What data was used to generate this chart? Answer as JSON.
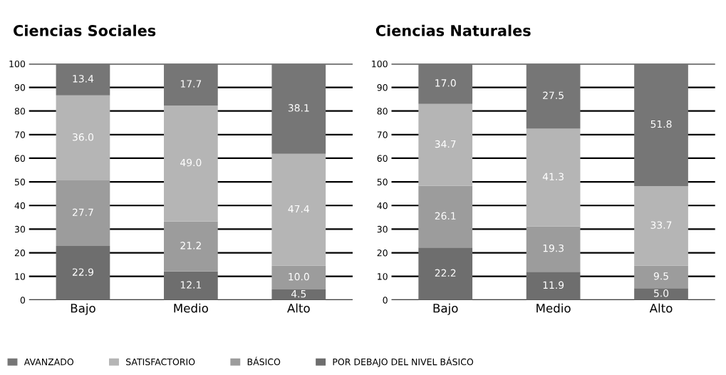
{
  "chart_data": [
    {
      "type": "bar",
      "title": "Ciencias Sociales",
      "categories": [
        "Bajo",
        "Medio",
        "Alto"
      ],
      "stacked": true,
      "grid": "y",
      "legend": "bottom",
      "ylim": [
        0,
        100
      ],
      "yticks": [
        0,
        10,
        20,
        30,
        40,
        50,
        60,
        70,
        80,
        90,
        100
      ],
      "series": [
        {
          "name": "POR DEBAJO DEL NIVEL BÁSICO",
          "color": "#6e6e6e",
          "values": [
            22.9,
            12.1,
            4.5
          ],
          "value_labels": [
            "22.9",
            "12.1",
            "4.5"
          ]
        },
        {
          "name": "BÁSICO",
          "color": "#9c9c9c",
          "values": [
            27.7,
            21.2,
            10.0
          ],
          "value_labels": [
            "27.7",
            "21.2",
            "10.0"
          ]
        },
        {
          "name": "SATISFACTORIO",
          "color": "#b5b5b5",
          "values": [
            36.0,
            49.0,
            47.4
          ],
          "value_labels": [
            "36.0",
            "49.0",
            "47.4"
          ]
        },
        {
          "name": "AVANZADO",
          "color": "#767676",
          "values": [
            13.4,
            17.7,
            38.1
          ],
          "value_labels": [
            "13.4",
            "17.7",
            "38.1"
          ]
        }
      ]
    },
    {
      "type": "bar",
      "title": "Ciencias Naturales",
      "categories": [
        "Bajo",
        "Medio",
        "Alto"
      ],
      "stacked": true,
      "grid": "y",
      "ylim": [
        0,
        100
      ],
      "yticks": [
        0,
        10,
        20,
        30,
        40,
        50,
        60,
        70,
        80,
        90,
        100
      ],
      "series": [
        {
          "color": "#6e6e6e",
          "values": [
            22.2,
            11.9,
            5.0
          ],
          "value_labels": [
            "22.2",
            "11.9",
            "5.0"
          ]
        },
        {
          "color": "#9c9c9c",
          "values": [
            26.1,
            19.3,
            9.5
          ],
          "value_labels": [
            "26.1",
            "19.3",
            "9.5"
          ]
        },
        {
          "color": "#b5b5b5",
          "values": [
            34.7,
            41.3,
            33.7
          ],
          "value_labels": [
            "34.7",
            "41.3",
            "33.7"
          ]
        },
        {
          "color": "#767676",
          "values": [
            17.0,
            27.5,
            51.8
          ],
          "value_labels": [
            "17.0",
            "27.5",
            "51.8"
          ]
        }
      ]
    }
  ]
}
